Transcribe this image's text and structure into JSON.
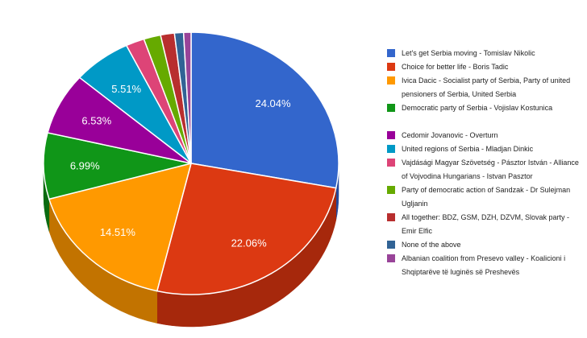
{
  "chart_data": {
    "type": "pie",
    "title": "",
    "slices": [
      {
        "label": "Let's get Serbia moving - Tomislav Nikolic",
        "value": 24.04,
        "value_label": "24.04%",
        "color": "#3366cc",
        "side": "#25499a"
      },
      {
        "label": " Choice for better life - Boris Tadic",
        "value": 22.06,
        "value_label": "22.06%",
        "color": "#dc3912",
        "side": "#a6280c"
      },
      {
        "label": "Ivica Dacic - Socialist party of Serbia, Party of united pensioners of Serbia, United Serbia",
        "value": 14.51,
        "value_label": "14.51%",
        "color": "#ff9900",
        "side": "#c27300"
      },
      {
        "label": "Democratic party of Serbia - Vojislav Kostunica",
        "value": 6.99,
        "value_label": "6.99%",
        "color": "#109618",
        "side": "#0a6a10"
      },
      {
        "label": "Cedomir Jovanovic - Overturn",
        "value": 6.53,
        "value_label": "6.53%",
        "color": "#990099",
        "side": "#6d006d"
      },
      {
        "label": "United regions of Serbia - Mladjan Dinkic",
        "value": 5.51,
        "value_label": "5.51%",
        "color": "#0099c6",
        "side": "#006d8e"
      },
      {
        "label": " Vajdásági Magyar Szövetség - Pásztor István - Alliance of Vojvodina Hungarians - Istvan Pasztor",
        "value": 1.75,
        "value_label": "",
        "color": "#dd4477",
        "side": "#a32f56"
      },
      {
        "label": "Party of democratic action of Sandzak - Dr Sulejman Ugljanin",
        "value": 1.6,
        "value_label": "",
        "color": "#66aa00",
        "side": "#4a7b00"
      },
      {
        "label": "All together: BDZ, GSM, DZH, DZVM, Slovak party - Emir Elfic",
        "value": 1.3,
        "value_label": "",
        "color": "#b82e2e",
        "side": "#862121"
      },
      {
        "label": "None of the above",
        "value": 0.85,
        "value_label": "",
        "color": "#316395",
        "side": "#23476b"
      },
      {
        "label": " Albanian coalition from Presevo valley - Koalicioni i Shqiptarëve të luginës së Preshevës",
        "value": 0.7,
        "value_label": "",
        "color": "#994499",
        "side": "#6e306e"
      }
    ]
  }
}
